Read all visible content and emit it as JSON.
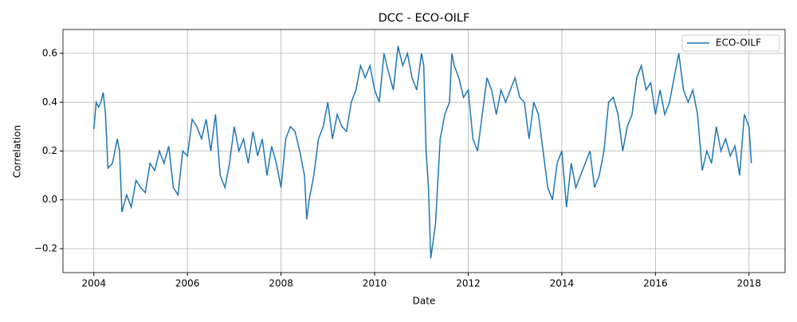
{
  "chart_data": {
    "type": "line",
    "title": "DCC - ECO-OILF",
    "x_label": "Date",
    "y_label": "Correlation",
    "x": [
      2004.0,
      2004.05,
      2004.1,
      2004.15,
      2004.2,
      2004.25,
      2004.3,
      2004.4,
      2004.5,
      2004.55,
      2004.6,
      2004.7,
      2004.8,
      2004.9,
      2005.0,
      2005.1,
      2005.2,
      2005.3,
      2005.4,
      2005.5,
      2005.6,
      2005.7,
      2005.8,
      2005.9,
      2006.0,
      2006.1,
      2006.2,
      2006.3,
      2006.4,
      2006.5,
      2006.6,
      2006.7,
      2006.8,
      2006.9,
      2007.0,
      2007.1,
      2007.2,
      2007.3,
      2007.4,
      2007.5,
      2007.6,
      2007.7,
      2007.8,
      2007.9,
      2008.0,
      2008.1,
      2008.2,
      2008.3,
      2008.4,
      2008.5,
      2008.55,
      2008.6,
      2008.7,
      2008.8,
      2008.9,
      2009.0,
      2009.1,
      2009.2,
      2009.3,
      2009.4,
      2009.5,
      2009.6,
      2009.7,
      2009.8,
      2009.9,
      2010.0,
      2010.1,
      2010.2,
      2010.3,
      2010.4,
      2010.5,
      2010.6,
      2010.7,
      2010.8,
      2010.9,
      2011.0,
      2011.05,
      2011.1,
      2011.15,
      2011.2,
      2011.3,
      2011.4,
      2011.5,
      2011.6,
      2011.65,
      2011.7,
      2011.8,
      2011.9,
      2012.0,
      2012.1,
      2012.2,
      2012.3,
      2012.4,
      2012.5,
      2012.6,
      2012.7,
      2012.8,
      2012.9,
      2013.0,
      2013.1,
      2013.2,
      2013.3,
      2013.4,
      2013.5,
      2013.6,
      2013.7,
      2013.8,
      2013.9,
      2014.0,
      2014.1,
      2014.2,
      2014.3,
      2014.4,
      2014.5,
      2014.6,
      2014.7,
      2014.8,
      2014.9,
      2015.0,
      2015.1,
      2015.2,
      2015.3,
      2015.4,
      2015.5,
      2015.6,
      2015.7,
      2015.8,
      2015.9,
      2016.0,
      2016.1,
      2016.2,
      2016.3,
      2016.4,
      2016.5,
      2016.6,
      2016.7,
      2016.8,
      2016.9,
      2017.0,
      2017.1,
      2017.2,
      2017.3,
      2017.4,
      2017.5,
      2017.6,
      2017.7,
      2017.8,
      2017.9,
      2018.0,
      2018.05
    ],
    "series": [
      {
        "name": "ECO-OILF",
        "color": "#1f77b4",
        "values": [
          0.29,
          0.4,
          0.38,
          0.4,
          0.44,
          0.35,
          0.13,
          0.15,
          0.25,
          0.2,
          -0.05,
          0.02,
          -0.03,
          0.08,
          0.05,
          0.03,
          0.15,
          0.12,
          0.2,
          0.15,
          0.22,
          0.05,
          0.02,
          0.2,
          0.18,
          0.33,
          0.3,
          0.25,
          0.33,
          0.2,
          0.35,
          0.1,
          0.05,
          0.15,
          0.3,
          0.2,
          0.25,
          0.15,
          0.28,
          0.18,
          0.25,
          0.1,
          0.22,
          0.15,
          0.05,
          0.25,
          0.3,
          0.28,
          0.2,
          0.1,
          -0.08,
          0.0,
          0.1,
          0.25,
          0.3,
          0.4,
          0.25,
          0.35,
          0.3,
          0.28,
          0.4,
          0.45,
          0.55,
          0.5,
          0.55,
          0.45,
          0.4,
          0.6,
          0.52,
          0.45,
          0.63,
          0.55,
          0.6,
          0.5,
          0.45,
          0.6,
          0.55,
          0.2,
          0.05,
          -0.24,
          -0.1,
          0.25,
          0.35,
          0.4,
          0.6,
          0.55,
          0.5,
          0.42,
          0.45,
          0.25,
          0.2,
          0.35,
          0.5,
          0.45,
          0.35,
          0.45,
          0.4,
          0.45,
          0.5,
          0.42,
          0.4,
          0.25,
          0.4,
          0.35,
          0.2,
          0.05,
          0.0,
          0.15,
          0.2,
          -0.03,
          0.15,
          0.05,
          0.1,
          0.15,
          0.2,
          0.05,
          0.1,
          0.2,
          0.4,
          0.42,
          0.35,
          0.2,
          0.3,
          0.35,
          0.5,
          0.55,
          0.45,
          0.48,
          0.35,
          0.45,
          0.35,
          0.4,
          0.5,
          0.6,
          0.45,
          0.4,
          0.45,
          0.35,
          0.12,
          0.2,
          0.15,
          0.3,
          0.2,
          0.25,
          0.18,
          0.22,
          0.1,
          0.35,
          0.3,
          0.15
        ]
      }
    ],
    "xlim": [
      2003.34,
      2018.77
    ],
    "ylim": [
      -0.298,
      0.698
    ],
    "xticks": [
      2004,
      2006,
      2008,
      2010,
      2012,
      2014,
      2016,
      2018
    ],
    "yticks": [
      {
        "value": -0.2,
        "label": "−0.2"
      },
      {
        "value": 0,
        "label": "0.0"
      },
      {
        "value": 0.2,
        "label": "0.2"
      },
      {
        "value": 0.4,
        "label": "0.4"
      },
      {
        "value": 0.6,
        "label": "0.6"
      }
    ],
    "grid": true,
    "legend": "upper right"
  }
}
